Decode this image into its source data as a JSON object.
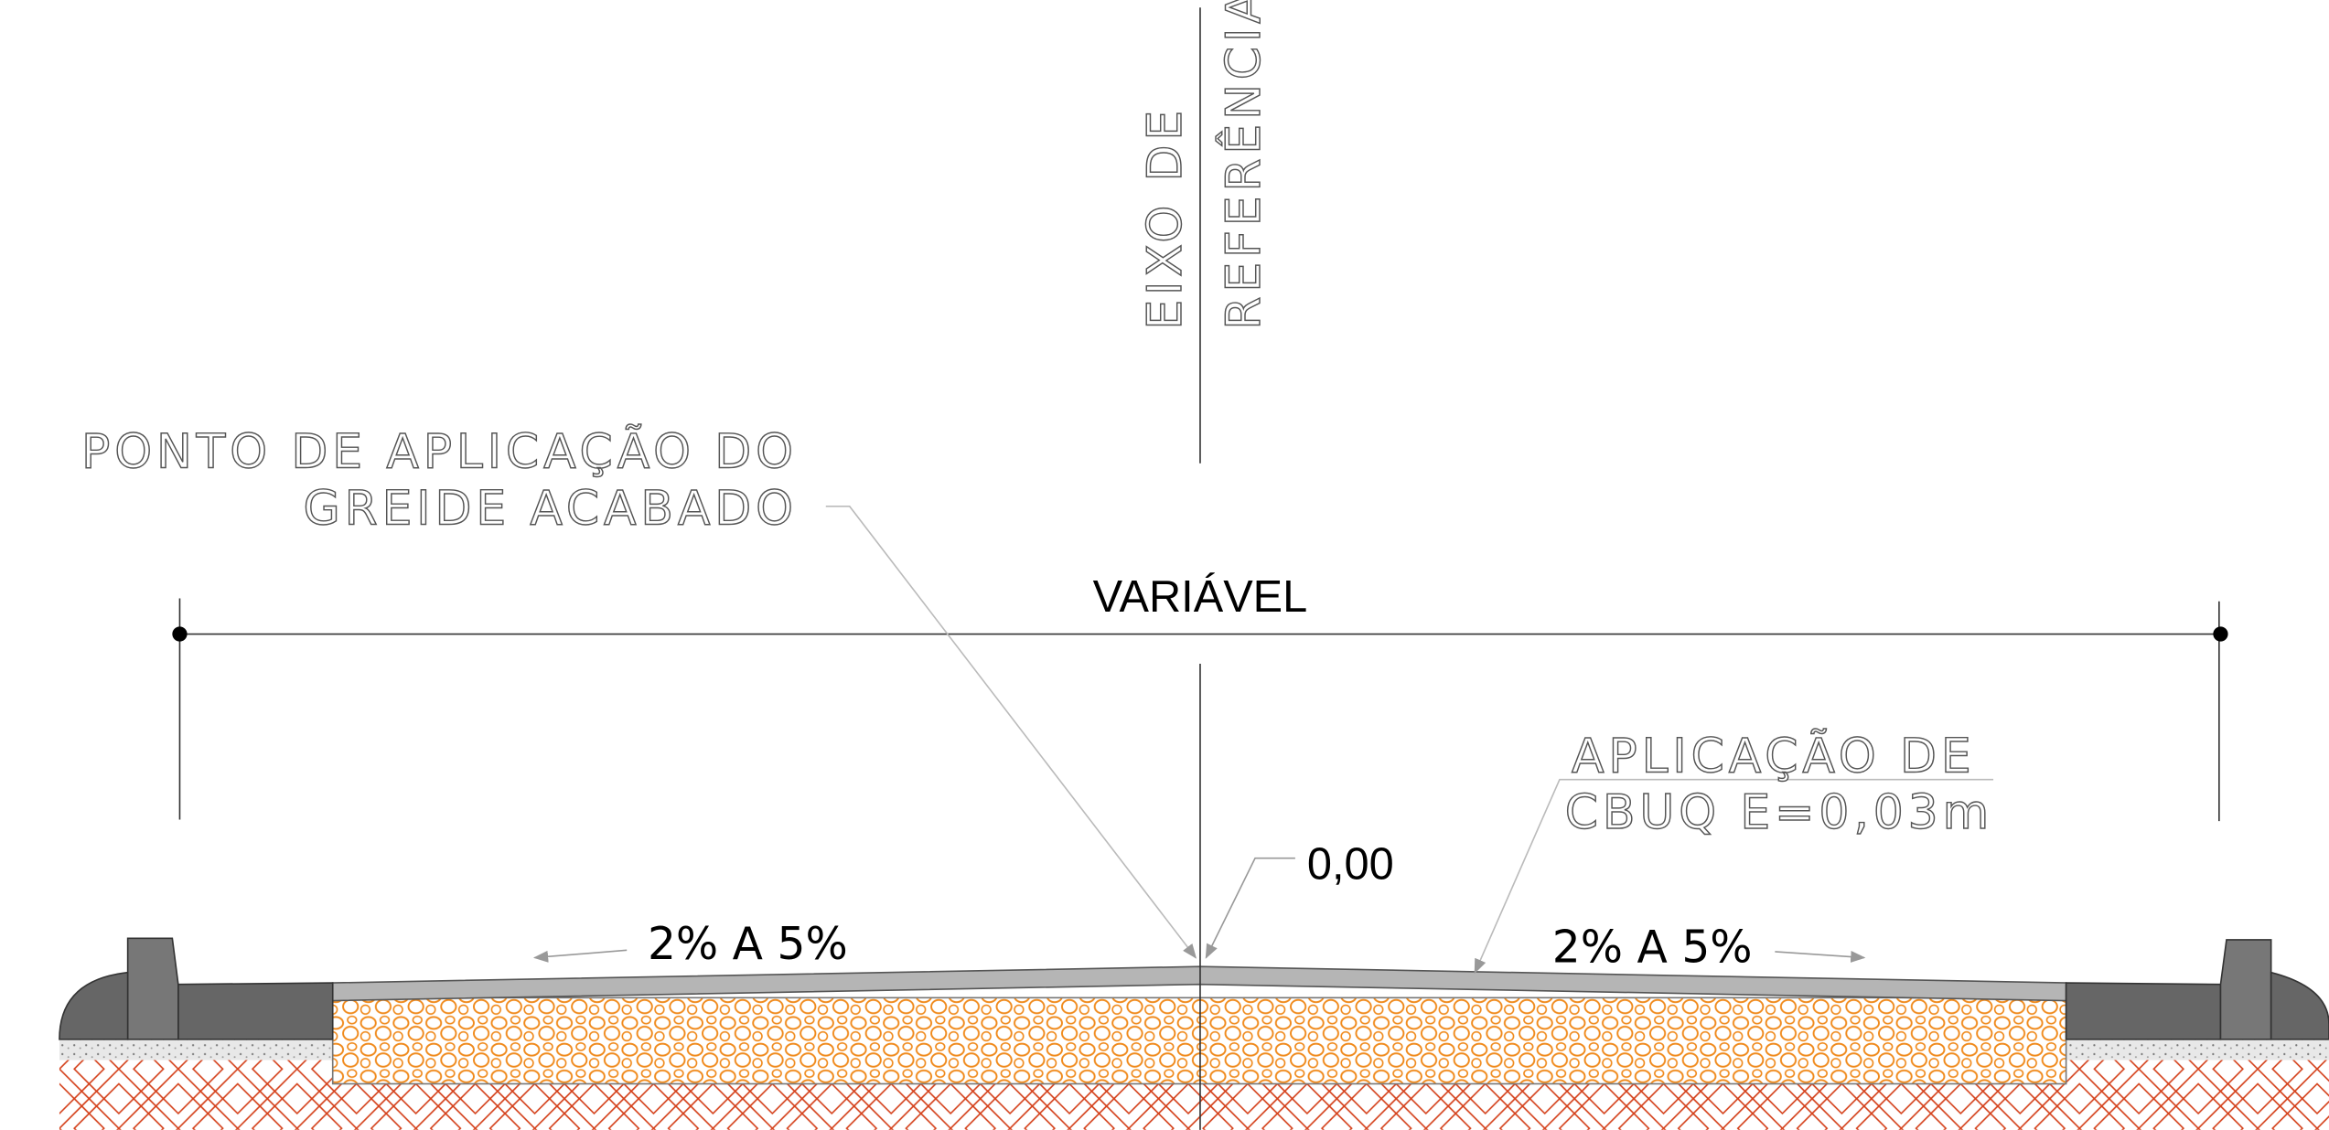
{
  "axis_label": [
    "EIXO DE",
    "REFERÊNCIA"
  ],
  "note_point": [
    "PONTO DE APLICAÇÃO DO",
    "GREIDE ACABADO"
  ],
  "dimension": "VARIÁVEL",
  "note_cbuq": [
    "APLICAÇÃO DE",
    "CBUQ E=0,03m"
  ],
  "elevation": "0,00",
  "slope_left": "2% A 5%",
  "slope_right": "2% A 5%"
}
